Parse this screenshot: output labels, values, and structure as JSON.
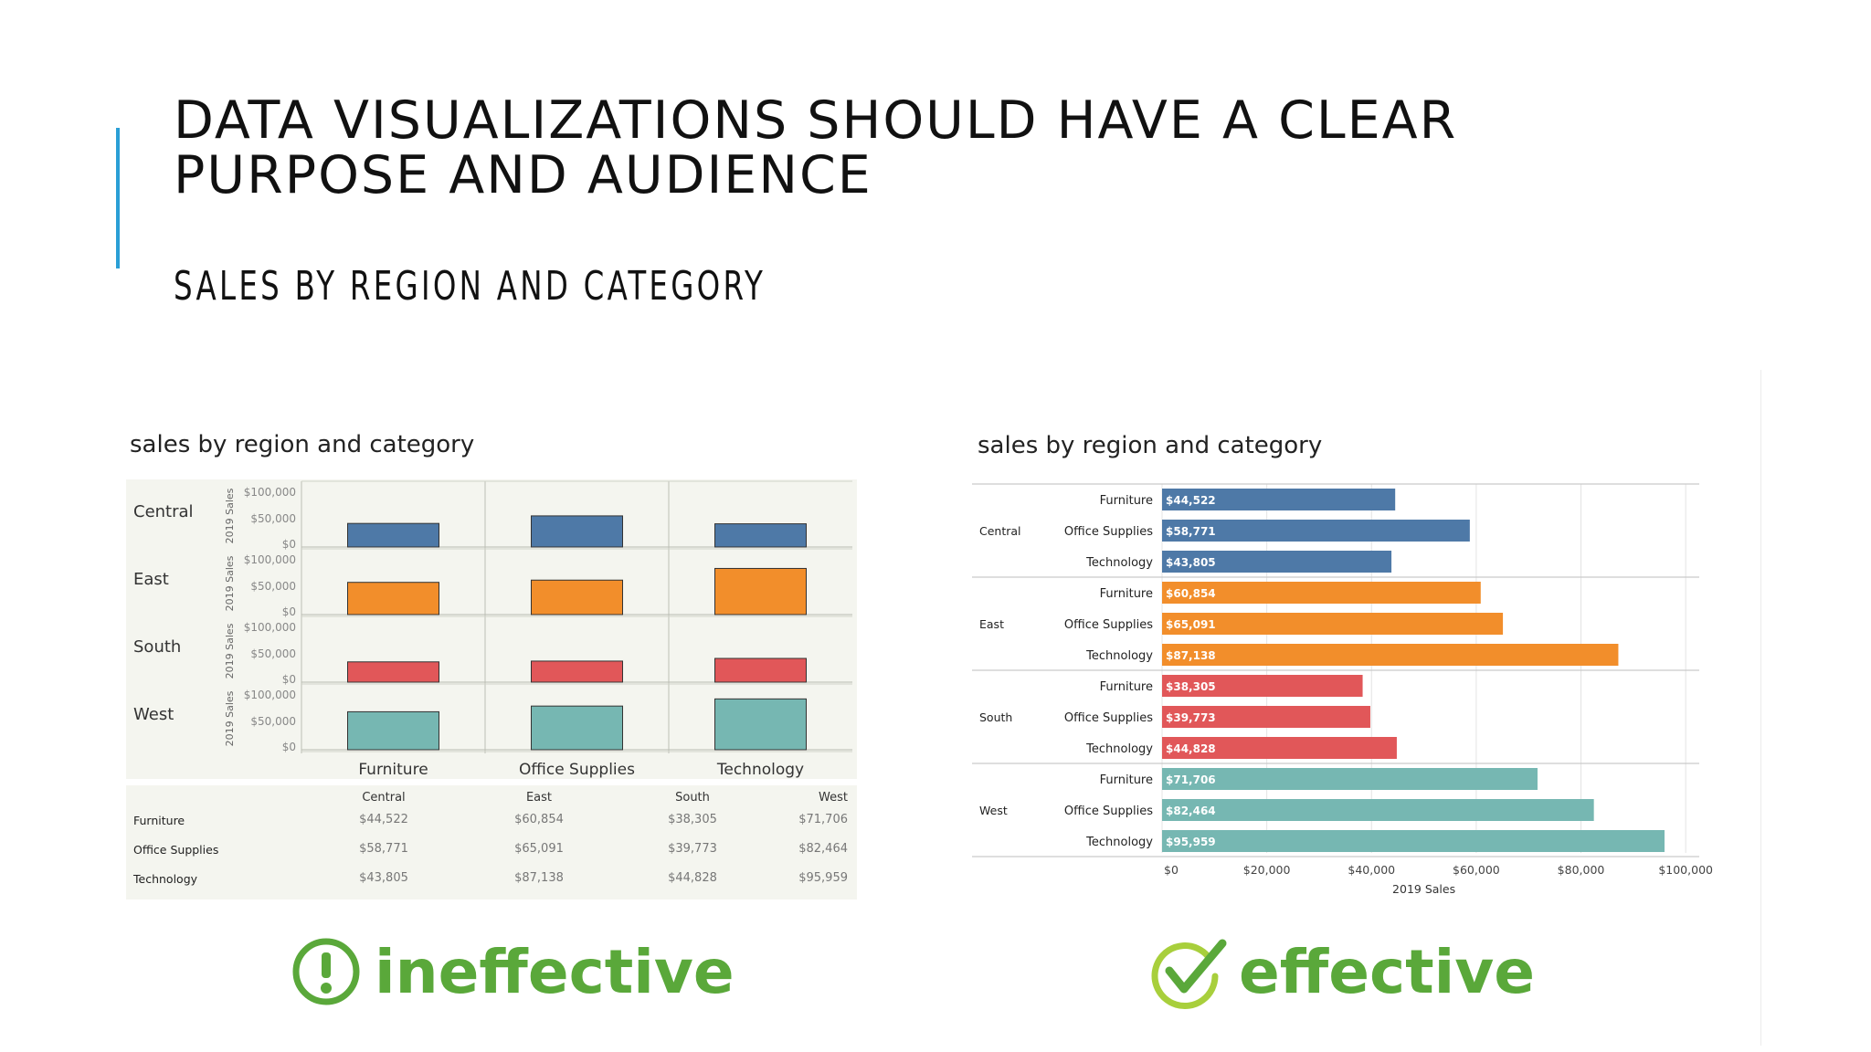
{
  "slide": {
    "title": "DATA VISUALIZATIONS SHOULD HAVE A CLEAR\nPURPOSE AND AUDIENCE",
    "subtitle": "SALES BY REGION AND CATEGORY",
    "accent_color": "#2a9fd6"
  },
  "colors": {
    "Central": "#4e79a7",
    "East": "#f28e2b",
    "South": "#e15759",
    "West": "#76b7b2",
    "verdict_green": "#5aa83a"
  },
  "left_panel": {
    "title": "sales by region and category",
    "verdict_label": "ineffective",
    "verdict_icon": "exclamation-circle-icon",
    "axis_label": "2019 Sales",
    "y_ticks": [
      "$100,000",
      "$50,000",
      "$0"
    ],
    "table": {
      "headers": [
        "",
        "Central",
        "East",
        "South",
        "West"
      ],
      "rows": [
        [
          "Furniture",
          "$44,522",
          "$60,854",
          "$38,305",
          "$71,706"
        ],
        [
          "Office Supplies",
          "$58,771",
          "$65,091",
          "$39,773",
          "$82,464"
        ],
        [
          "Technology",
          "$43,805",
          "$87,138",
          "$44,828",
          "$95,959"
        ]
      ]
    }
  },
  "right_panel": {
    "title": "sales by region and category",
    "verdict_label": "effective",
    "verdict_icon": "checkmark-circle-icon",
    "x_ticks": [
      "$0",
      "$20,000",
      "$40,000",
      "$60,000",
      "$80,000",
      "$100,000"
    ],
    "xlabel": "2019 Sales"
  },
  "chart_data": [
    {
      "type": "bar",
      "title": "sales by region and category",
      "layout": "small-multiples grid (region rows x category columns)",
      "regions": [
        "Central",
        "East",
        "South",
        "West"
      ],
      "categories": [
        "Furniture",
        "Office Supplies",
        "Technology"
      ],
      "ylabel": "2019 Sales",
      "ylim": [
        0,
        100000
      ],
      "series": [
        {
          "name": "Central",
          "values": [
            44522,
            58771,
            43805
          ]
        },
        {
          "name": "East",
          "values": [
            60854,
            65091,
            87138
          ]
        },
        {
          "name": "South",
          "values": [
            38305,
            39773,
            44828
          ]
        },
        {
          "name": "West",
          "values": [
            71706,
            82464,
            95959
          ]
        }
      ],
      "grid": true
    },
    {
      "type": "bar",
      "orientation": "horizontal",
      "title": "sales by region and category",
      "regions": [
        "Central",
        "East",
        "South",
        "West"
      ],
      "categories": [
        "Furniture",
        "Office Supplies",
        "Technology"
      ],
      "xlabel": "2019 Sales",
      "xlim": [
        0,
        100000
      ],
      "series": [
        {
          "name": "Central",
          "values": [
            44522,
            58771,
            43805
          ],
          "labels": [
            "$44,522",
            "$58,771",
            "$43,805"
          ]
        },
        {
          "name": "East",
          "values": [
            60854,
            65091,
            87138
          ],
          "labels": [
            "$60,854",
            "$65,091",
            "$87,138"
          ]
        },
        {
          "name": "South",
          "values": [
            38305,
            39773,
            44828
          ],
          "labels": [
            "$38,305",
            "$39,773",
            "$44,828"
          ]
        },
        {
          "name": "West",
          "values": [
            71706,
            82464,
            95959
          ],
          "labels": [
            "$71,706",
            "$82,464",
            "$95,959"
          ]
        }
      ],
      "grid": true
    }
  ]
}
